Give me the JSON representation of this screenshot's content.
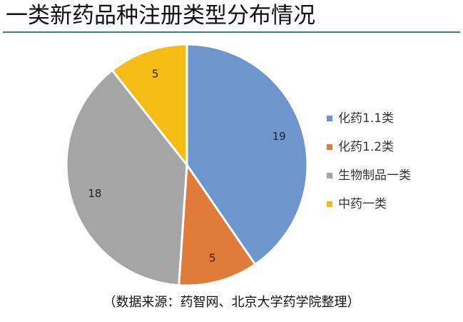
{
  "header": {
    "title": "一类新药品种注册类型分布情况"
  },
  "footer": {
    "source": "（数据来源：药智网、北京大学药学院整理）"
  },
  "chart_data": {
    "type": "pie",
    "title": "",
    "categories": [
      "化药1.1类",
      "化药1.2类",
      "生物制品一类",
      "中药一类"
    ],
    "values": [
      19,
      5,
      18,
      5
    ],
    "colors": [
      "#6f96cc",
      "#e07b39",
      "#a5a5a5",
      "#f4bc15"
    ],
    "data_labels": [
      "19",
      "5",
      "18",
      "5"
    ],
    "legend_position": "right"
  }
}
